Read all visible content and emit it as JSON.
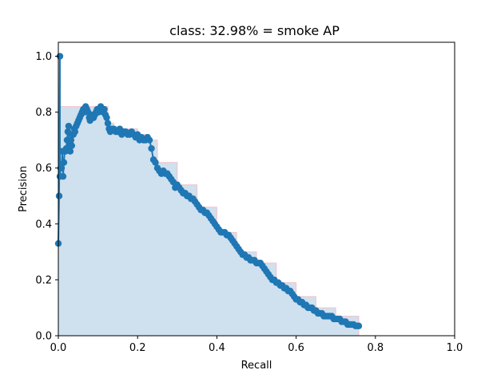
{
  "chart_data": {
    "type": "line",
    "title": "class: 32.98% = smoke AP",
    "xlabel": "Recall",
    "ylabel": "Precision",
    "xlim": [
      0,
      1
    ],
    "ylim": [
      0,
      1.05
    ],
    "x_ticks": [
      "0.0",
      "0.2",
      "0.4",
      "0.6",
      "0.8",
      "1.0"
    ],
    "y_ticks": [
      "0.0",
      "0.2",
      "0.4",
      "0.6",
      "0.8",
      "1.0"
    ],
    "grid": false,
    "legend": "none",
    "colors": {
      "points": "#1f77b4",
      "fill": "#cfe0ee",
      "envelope": "#f4c2c8"
    },
    "series": [
      {
        "style": "markers",
        "x": [
          0.0,
          0.002,
          0.004,
          0.004,
          0.006,
          0.008,
          0.01,
          0.012,
          0.014,
          0.016,
          0.018,
          0.02,
          0.022,
          0.024,
          0.026,
          0.028,
          0.03,
          0.032,
          0.034,
          0.036,
          0.038,
          0.04,
          0.042,
          0.045,
          0.048,
          0.051,
          0.054,
          0.057,
          0.06,
          0.063,
          0.066,
          0.069,
          0.072,
          0.075,
          0.078,
          0.08,
          0.083,
          0.086,
          0.089,
          0.092,
          0.095,
          0.098,
          0.101,
          0.104,
          0.107,
          0.11,
          0.113,
          0.116,
          0.119,
          0.122,
          0.125,
          0.128,
          0.131,
          0.135,
          0.14,
          0.145,
          0.15,
          0.155,
          0.16,
          0.165,
          0.17,
          0.175,
          0.18,
          0.185,
          0.19,
          0.195,
          0.2,
          0.205,
          0.21,
          0.215,
          0.22,
          0.225,
          0.23,
          0.235,
          0.24,
          0.245,
          0.25,
          0.255,
          0.26,
          0.265,
          0.27,
          0.275,
          0.28,
          0.285,
          0.29,
          0.295,
          0.3,
          0.305,
          0.31,
          0.315,
          0.32,
          0.325,
          0.33,
          0.335,
          0.34,
          0.345,
          0.35,
          0.355,
          0.36,
          0.365,
          0.37,
          0.375,
          0.38,
          0.385,
          0.39,
          0.395,
          0.4,
          0.405,
          0.41,
          0.415,
          0.42,
          0.425,
          0.43,
          0.435,
          0.44,
          0.445,
          0.45,
          0.455,
          0.46,
          0.465,
          0.47,
          0.475,
          0.48,
          0.485,
          0.49,
          0.495,
          0.5,
          0.505,
          0.51,
          0.515,
          0.52,
          0.525,
          0.53,
          0.535,
          0.54,
          0.545,
          0.55,
          0.555,
          0.56,
          0.565,
          0.57,
          0.575,
          0.58,
          0.585,
          0.59,
          0.595,
          0.6,
          0.605,
          0.61,
          0.615,
          0.62,
          0.625,
          0.63,
          0.635,
          0.64,
          0.645,
          0.65,
          0.655,
          0.66,
          0.665,
          0.67,
          0.675,
          0.68,
          0.685,
          0.69,
          0.695,
          0.7,
          0.705,
          0.71,
          0.715,
          0.72,
          0.725,
          0.73,
          0.735,
          0.74,
          0.745,
          0.75,
          0.755,
          0.758
        ],
        "y": [
          0.33,
          0.5,
          1.0,
          0.57,
          0.6,
          0.6,
          0.66,
          0.57,
          0.62,
          0.66,
          0.66,
          0.67,
          0.7,
          0.73,
          0.75,
          0.69,
          0.66,
          0.7,
          0.68,
          0.72,
          0.72,
          0.74,
          0.73,
          0.75,
          0.76,
          0.77,
          0.78,
          0.79,
          0.8,
          0.81,
          0.8,
          0.82,
          0.81,
          0.8,
          0.78,
          0.77,
          0.79,
          0.78,
          0.78,
          0.79,
          0.8,
          0.81,
          0.8,
          0.81,
          0.82,
          0.81,
          0.8,
          0.81,
          0.79,
          0.78,
          0.76,
          0.74,
          0.73,
          0.74,
          0.74,
          0.73,
          0.73,
          0.74,
          0.72,
          0.73,
          0.73,
          0.72,
          0.72,
          0.73,
          0.72,
          0.71,
          0.72,
          0.7,
          0.71,
          0.7,
          0.7,
          0.71,
          0.7,
          0.67,
          0.63,
          0.62,
          0.6,
          0.59,
          0.58,
          0.59,
          0.58,
          0.58,
          0.57,
          0.56,
          0.55,
          0.53,
          0.54,
          0.53,
          0.52,
          0.51,
          0.51,
          0.5,
          0.5,
          0.49,
          0.49,
          0.48,
          0.47,
          0.46,
          0.45,
          0.45,
          0.44,
          0.44,
          0.43,
          0.42,
          0.41,
          0.4,
          0.39,
          0.38,
          0.37,
          0.37,
          0.37,
          0.36,
          0.36,
          0.35,
          0.34,
          0.33,
          0.32,
          0.31,
          0.3,
          0.29,
          0.29,
          0.28,
          0.28,
          0.27,
          0.27,
          0.27,
          0.26,
          0.26,
          0.26,
          0.25,
          0.24,
          0.23,
          0.22,
          0.21,
          0.2,
          0.2,
          0.19,
          0.19,
          0.18,
          0.18,
          0.17,
          0.17,
          0.16,
          0.16,
          0.15,
          0.14,
          0.13,
          0.13,
          0.12,
          0.12,
          0.11,
          0.11,
          0.1,
          0.1,
          0.1,
          0.09,
          0.09,
          0.08,
          0.08,
          0.08,
          0.07,
          0.07,
          0.07,
          0.07,
          0.07,
          0.06,
          0.06,
          0.06,
          0.06,
          0.05,
          0.05,
          0.05,
          0.04,
          0.04,
          0.04,
          0.04,
          0.035,
          0.035,
          0.035
        ]
      },
      {
        "style": "envelope",
        "x": [
          0.0,
          0.0,
          0.004,
          0.004,
          0.125,
          0.125,
          0.14,
          0.14,
          0.2,
          0.2,
          0.23,
          0.23,
          0.25,
          0.25,
          0.3,
          0.3,
          0.35,
          0.35,
          0.4,
          0.4,
          0.45,
          0.45,
          0.5,
          0.5,
          0.55,
          0.55,
          0.6,
          0.6,
          0.65,
          0.65,
          0.7,
          0.7,
          0.758,
          0.758
        ],
        "y": [
          0.0,
          1.0,
          1.0,
          0.82,
          0.82,
          0.76,
          0.76,
          0.74,
          0.74,
          0.72,
          0.72,
          0.7,
          0.7,
          0.62,
          0.62,
          0.54,
          0.54,
          0.46,
          0.46,
          0.37,
          0.37,
          0.3,
          0.3,
          0.26,
          0.26,
          0.19,
          0.19,
          0.14,
          0.14,
          0.1,
          0.1,
          0.07,
          0.07,
          0.0
        ]
      }
    ]
  }
}
